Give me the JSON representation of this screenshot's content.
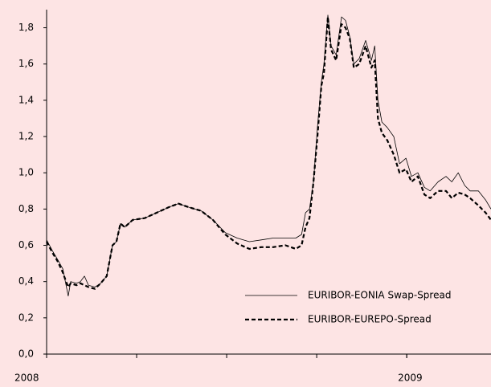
{
  "chart_data": {
    "type": "line",
    "series": [
      {
        "name": "EURIBOR-EONIA Swap-Spread",
        "color": "#000000",
        "dash": false,
        "x": [
          2008.0,
          2008.016,
          2008.031,
          2008.045,
          2008.054,
          2008.06,
          2008.067,
          2008.083,
          2008.094,
          2008.105,
          2008.116,
          2008.134,
          2008.15,
          2008.167,
          2008.183,
          2008.194,
          2008.205,
          2008.217,
          2008.239,
          2008.272,
          2008.306,
          2008.339,
          2008.366,
          2008.395,
          2008.429,
          2008.462,
          2008.496,
          2008.529,
          2008.563,
          2008.596,
          2008.629,
          2008.663,
          2008.692,
          2008.708,
          2008.719,
          2008.73,
          2008.741,
          2008.752,
          2008.763,
          2008.77,
          2008.781,
          2008.79,
          2008.804,
          2008.819,
          2008.83,
          2008.842,
          2008.853,
          2008.868,
          2008.886,
          2008.902,
          2008.911,
          2008.92,
          2008.931,
          2008.946,
          2008.964,
          2008.98,
          2008.998,
          2009.013,
          2009.031,
          2009.049,
          2009.065,
          2009.087,
          2009.109,
          2009.125,
          2009.143,
          2009.161,
          2009.176,
          2009.199,
          2009.219,
          2009.234
        ],
        "values": [
          0.63,
          0.57,
          0.52,
          0.47,
          0.38,
          0.32,
          0.4,
          0.39,
          0.4,
          0.43,
          0.38,
          0.37,
          0.39,
          0.43,
          0.6,
          0.62,
          0.72,
          0.7,
          0.74,
          0.75,
          0.78,
          0.81,
          0.83,
          0.81,
          0.79,
          0.74,
          0.67,
          0.64,
          0.62,
          0.63,
          0.64,
          0.64,
          0.64,
          0.66,
          0.78,
          0.8,
          0.95,
          1.25,
          1.5,
          1.6,
          1.87,
          1.7,
          1.65,
          1.86,
          1.84,
          1.75,
          1.6,
          1.63,
          1.73,
          1.62,
          1.7,
          1.4,
          1.28,
          1.25,
          1.2,
          1.05,
          1.08,
          0.98,
          1.0,
          0.92,
          0.9,
          0.95,
          0.98,
          0.95,
          1.0,
          0.93,
          0.9,
          0.9,
          0.85,
          0.8
        ]
      },
      {
        "name": "EURIBOR-EUREPO-Spread",
        "color": "#000000",
        "dash": true,
        "x": [
          2008.0,
          2008.016,
          2008.031,
          2008.045,
          2008.054,
          2008.06,
          2008.067,
          2008.083,
          2008.094,
          2008.105,
          2008.116,
          2008.134,
          2008.15,
          2008.167,
          2008.183,
          2008.194,
          2008.205,
          2008.217,
          2008.239,
          2008.272,
          2008.306,
          2008.339,
          2008.366,
          2008.395,
          2008.429,
          2008.462,
          2008.496,
          2008.529,
          2008.563,
          2008.596,
          2008.629,
          2008.663,
          2008.692,
          2008.708,
          2008.719,
          2008.73,
          2008.741,
          2008.752,
          2008.763,
          2008.77,
          2008.781,
          2008.79,
          2008.804,
          2008.819,
          2008.83,
          2008.842,
          2008.853,
          2008.868,
          2008.886,
          2008.902,
          2008.911,
          2008.92,
          2008.931,
          2008.946,
          2008.964,
          2008.98,
          2008.998,
          2009.013,
          2009.031,
          2009.049,
          2009.065,
          2009.087,
          2009.109,
          2009.125,
          2009.143,
          2009.161,
          2009.176,
          2009.199,
          2009.219,
          2009.234
        ],
        "values": [
          0.62,
          0.56,
          0.51,
          0.45,
          0.4,
          0.37,
          0.39,
          0.38,
          0.39,
          0.38,
          0.37,
          0.36,
          0.39,
          0.43,
          0.6,
          0.62,
          0.72,
          0.7,
          0.74,
          0.75,
          0.78,
          0.81,
          0.83,
          0.81,
          0.79,
          0.74,
          0.66,
          0.61,
          0.58,
          0.59,
          0.59,
          0.6,
          0.58,
          0.6,
          0.7,
          0.75,
          0.95,
          1.2,
          1.48,
          1.55,
          1.86,
          1.68,
          1.62,
          1.82,
          1.8,
          1.74,
          1.58,
          1.6,
          1.7,
          1.58,
          1.62,
          1.3,
          1.22,
          1.18,
          1.1,
          1.0,
          1.02,
          0.95,
          0.98,
          0.88,
          0.86,
          0.9,
          0.9,
          0.86,
          0.89,
          0.88,
          0.86,
          0.82,
          0.78,
          0.74
        ]
      }
    ],
    "xlim": [
      2008,
      2009.234
    ],
    "xticks": [
      2008,
      2009
    ],
    "xminorticks": [
      2008.25,
      2008.5,
      2008.75,
      2009
    ],
    "ylim": [
      0,
      1.9
    ],
    "yticks": [
      {
        "value": 0,
        "label": "0,0"
      },
      {
        "value": 0.2,
        "label": "0,2"
      },
      {
        "value": 0.4,
        "label": "0,4"
      },
      {
        "value": 0.6,
        "label": "0,6"
      },
      {
        "value": 0.8,
        "label": "0,8"
      },
      {
        "value": 1.0,
        "label": "1,0"
      },
      {
        "value": 1.2,
        "label": "1,2"
      },
      {
        "value": 1.4,
        "label": "1,4"
      },
      {
        "value": 1.6,
        "label": "1,6"
      },
      {
        "value": 1.8,
        "label": "1,8"
      }
    ],
    "grid": false,
    "legend": "lower right"
  }
}
